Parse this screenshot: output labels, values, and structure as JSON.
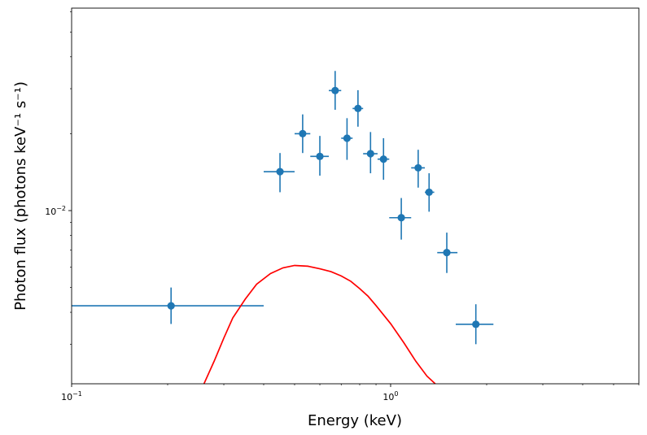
{
  "chart_data": {
    "type": "scatter",
    "xlabel": "Energy (keV)",
    "ylabel": "Photon flux (photons keV⁻¹ s⁻¹)",
    "xscale": "log",
    "yscale": "log",
    "xlim": [
      0.1,
      6.0
    ],
    "ylim": [
      0.0021,
      0.062
    ],
    "grid": false,
    "x_tick_labels": [
      {
        "value": 0.1,
        "base": "10",
        "exp": "−1"
      },
      {
        "value": 1.0,
        "base": "10",
        "exp": "0"
      }
    ],
    "y_tick_labels": [
      {
        "value": 0.01,
        "base": "10",
        "exp": "−2"
      }
    ],
    "series": [
      {
        "type": "errorbar",
        "color": "#1f77b4",
        "points": [
          {
            "x": 0.205,
            "xlo": 0.1,
            "xhi": 0.4,
            "y": 0.00424,
            "ylo": 0.0036,
            "yhi": 0.005
          },
          {
            "x": 0.45,
            "xlo": 0.4,
            "xhi": 0.5,
            "y": 0.0142,
            "ylo": 0.0118,
            "yhi": 0.0168
          },
          {
            "x": 0.53,
            "xlo": 0.5,
            "xhi": 0.56,
            "y": 0.02,
            "ylo": 0.0168,
            "yhi": 0.0238
          },
          {
            "x": 0.6,
            "xlo": 0.56,
            "xhi": 0.64,
            "y": 0.0163,
            "ylo": 0.0137,
            "yhi": 0.0196
          },
          {
            "x": 0.67,
            "xlo": 0.64,
            "xhi": 0.7,
            "y": 0.0295,
            "ylo": 0.0248,
            "yhi": 0.0352
          },
          {
            "x": 0.73,
            "xlo": 0.7,
            "xhi": 0.76,
            "y": 0.0192,
            "ylo": 0.0158,
            "yhi": 0.023
          },
          {
            "x": 0.79,
            "xlo": 0.76,
            "xhi": 0.82,
            "y": 0.0251,
            "ylo": 0.0213,
            "yhi": 0.0296
          },
          {
            "x": 0.865,
            "xlo": 0.82,
            "xhi": 0.91,
            "y": 0.0167,
            "ylo": 0.014,
            "yhi": 0.0203
          },
          {
            "x": 0.95,
            "xlo": 0.91,
            "xhi": 0.99,
            "y": 0.0159,
            "ylo": 0.0132,
            "yhi": 0.0192
          },
          {
            "x": 1.08,
            "xlo": 0.99,
            "xhi": 1.16,
            "y": 0.00938,
            "ylo": 0.0077,
            "yhi": 0.0112
          },
          {
            "x": 1.22,
            "xlo": 1.16,
            "xhi": 1.28,
            "y": 0.0147,
            "ylo": 0.0123,
            "yhi": 0.0173
          },
          {
            "x": 1.32,
            "xlo": 1.28,
            "xhi": 1.37,
            "y": 0.0118,
            "ylo": 0.0099,
            "yhi": 0.014
          },
          {
            "x": 1.5,
            "xlo": 1.4,
            "xhi": 1.62,
            "y": 0.00685,
            "ylo": 0.0057,
            "yhi": 0.0082
          },
          {
            "x": 1.85,
            "xlo": 1.6,
            "xhi": 2.1,
            "y": 0.00359,
            "ylo": 0.003,
            "yhi": 0.0043
          }
        ]
      },
      {
        "type": "line",
        "color": "#ff0000",
        "points": [
          {
            "x": 0.26,
            "y": 0.0021
          },
          {
            "x": 0.28,
            "y": 0.00258
          },
          {
            "x": 0.3,
            "y": 0.00317
          },
          {
            "x": 0.32,
            "y": 0.0038
          },
          {
            "x": 0.35,
            "y": 0.0045
          },
          {
            "x": 0.38,
            "y": 0.00515
          },
          {
            "x": 0.42,
            "y": 0.00567
          },
          {
            "x": 0.46,
            "y": 0.00597
          },
          {
            "x": 0.5,
            "y": 0.0061
          },
          {
            "x": 0.55,
            "y": 0.00606
          },
          {
            "x": 0.6,
            "y": 0.00592
          },
          {
            "x": 0.65,
            "y": 0.00577
          },
          {
            "x": 0.7,
            "y": 0.00555
          },
          {
            "x": 0.75,
            "y": 0.00529
          },
          {
            "x": 0.8,
            "y": 0.00495
          },
          {
            "x": 0.85,
            "y": 0.00462
          },
          {
            "x": 0.9,
            "y": 0.00425
          },
          {
            "x": 1.0,
            "y": 0.00361
          },
          {
            "x": 1.1,
            "y": 0.00304
          },
          {
            "x": 1.2,
            "y": 0.00257
          },
          {
            "x": 1.3,
            "y": 0.00225
          },
          {
            "x": 1.38,
            "y": 0.0021
          }
        ]
      }
    ]
  }
}
